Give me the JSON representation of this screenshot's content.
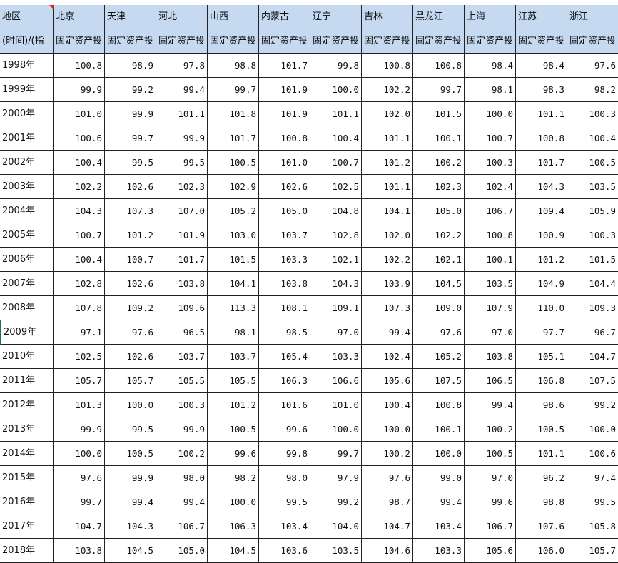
{
  "header": {
    "corner": "地区",
    "columns": [
      "北京",
      "天津",
      "河北",
      "山西",
      "内蒙古",
      "辽宁",
      "吉林",
      "黑龙江",
      "上海",
      "江苏",
      "浙江"
    ]
  },
  "subheader": {
    "corner": "(时间)/(指",
    "columns": [
      "固定资产投",
      "固定资产投",
      "固定资产投",
      "固定资产投",
      "固定资产投",
      "固定资产投",
      "固定资产投",
      "固定资产投",
      "固定资产投",
      "固定资产投",
      "固定资产投"
    ]
  },
  "rows": [
    {
      "year": "1998年",
      "values": [
        "100.8",
        "98.9",
        "97.8",
        "98.8",
        "101.7",
        "99.8",
        "100.8",
        "100.8",
        "98.4",
        "98.4",
        "97.6"
      ]
    },
    {
      "year": "1999年",
      "values": [
        "99.9",
        "99.2",
        "99.4",
        "99.7",
        "101.9",
        "100.0",
        "102.2",
        "99.7",
        "98.1",
        "98.3",
        "98.2"
      ]
    },
    {
      "year": "2000年",
      "values": [
        "101.0",
        "99.9",
        "101.1",
        "101.8",
        "101.9",
        "101.1",
        "102.0",
        "101.5",
        "100.0",
        "101.1",
        "100.3"
      ]
    },
    {
      "year": "2001年",
      "values": [
        "100.6",
        "99.7",
        "99.9",
        "101.7",
        "100.8",
        "100.4",
        "101.1",
        "100.1",
        "100.7",
        "100.8",
        "100.4"
      ]
    },
    {
      "year": "2002年",
      "values": [
        "100.4",
        "99.5",
        "99.5",
        "100.5",
        "101.0",
        "100.7",
        "101.2",
        "100.2",
        "100.3",
        "101.7",
        "100.5"
      ]
    },
    {
      "year": "2003年",
      "values": [
        "102.2",
        "102.6",
        "102.3",
        "102.9",
        "102.6",
        "102.5",
        "101.1",
        "102.3",
        "102.4",
        "104.3",
        "103.5"
      ]
    },
    {
      "year": "2004年",
      "values": [
        "104.3",
        "107.3",
        "107.0",
        "105.2",
        "105.0",
        "104.8",
        "104.1",
        "105.0",
        "106.7",
        "109.4",
        "105.9"
      ]
    },
    {
      "year": "2005年",
      "values": [
        "100.7",
        "101.2",
        "101.9",
        "103.0",
        "103.7",
        "102.8",
        "102.0",
        "102.2",
        "100.8",
        "100.9",
        "100.3"
      ]
    },
    {
      "year": "2006年",
      "values": [
        "100.4",
        "100.7",
        "101.7",
        "101.5",
        "103.3",
        "102.1",
        "102.2",
        "102.1",
        "100.1",
        "101.2",
        "101.5"
      ]
    },
    {
      "year": "2007年",
      "values": [
        "102.8",
        "102.6",
        "103.8",
        "104.1",
        "103.8",
        "104.3",
        "103.9",
        "104.5",
        "103.5",
        "104.9",
        "104.4"
      ]
    },
    {
      "year": "2008年",
      "values": [
        "107.8",
        "109.2",
        "109.6",
        "113.3",
        "108.1",
        "109.1",
        "107.3",
        "109.0",
        "107.9",
        "110.0",
        "109.3"
      ]
    },
    {
      "year": "2009年",
      "values": [
        "97.1",
        "97.6",
        "96.5",
        "98.1",
        "98.5",
        "97.0",
        "99.4",
        "97.6",
        "97.0",
        "97.7",
        "96.7"
      ]
    },
    {
      "year": "2010年",
      "values": [
        "102.5",
        "102.6",
        "103.7",
        "103.7",
        "105.4",
        "103.3",
        "102.4",
        "105.2",
        "103.8",
        "105.1",
        "104.7"
      ]
    },
    {
      "year": "2011年",
      "values": [
        "105.7",
        "105.7",
        "105.5",
        "105.5",
        "106.3",
        "106.6",
        "105.6",
        "107.5",
        "106.5",
        "106.8",
        "107.5"
      ]
    },
    {
      "year": "2012年",
      "values": [
        "101.3",
        "100.0",
        "100.3",
        "101.2",
        "101.6",
        "101.0",
        "100.4",
        "100.8",
        "99.4",
        "98.6",
        "99.2"
      ]
    },
    {
      "year": "2013年",
      "values": [
        "99.9",
        "99.5",
        "99.9",
        "100.5",
        "99.6",
        "100.0",
        "100.0",
        "100.1",
        "100.2",
        "100.5",
        "100.0"
      ]
    },
    {
      "year": "2014年",
      "values": [
        "100.0",
        "100.5",
        "100.2",
        "99.6",
        "99.8",
        "99.7",
        "100.2",
        "100.0",
        "100.5",
        "101.1",
        "100.6"
      ]
    },
    {
      "year": "2015年",
      "values": [
        "97.6",
        "99.9",
        "98.0",
        "98.2",
        "98.0",
        "97.9",
        "97.6",
        "99.0",
        "97.0",
        "96.2",
        "97.4"
      ]
    },
    {
      "year": "2016年",
      "values": [
        "99.7",
        "99.4",
        "99.4",
        "100.0",
        "99.5",
        "99.2",
        "98.7",
        "99.4",
        "99.6",
        "98.8",
        "99.5"
      ]
    },
    {
      "year": "2017年",
      "values": [
        "104.7",
        "104.3",
        "106.7",
        "106.3",
        "103.4",
        "104.0",
        "104.7",
        "103.4",
        "106.7",
        "107.6",
        "105.8"
      ]
    },
    {
      "year": "2018年",
      "values": [
        "103.8",
        "104.5",
        "105.0",
        "104.5",
        "103.6",
        "103.5",
        "104.6",
        "103.3",
        "105.6",
        "106.0",
        "105.7"
      ]
    }
  ]
}
